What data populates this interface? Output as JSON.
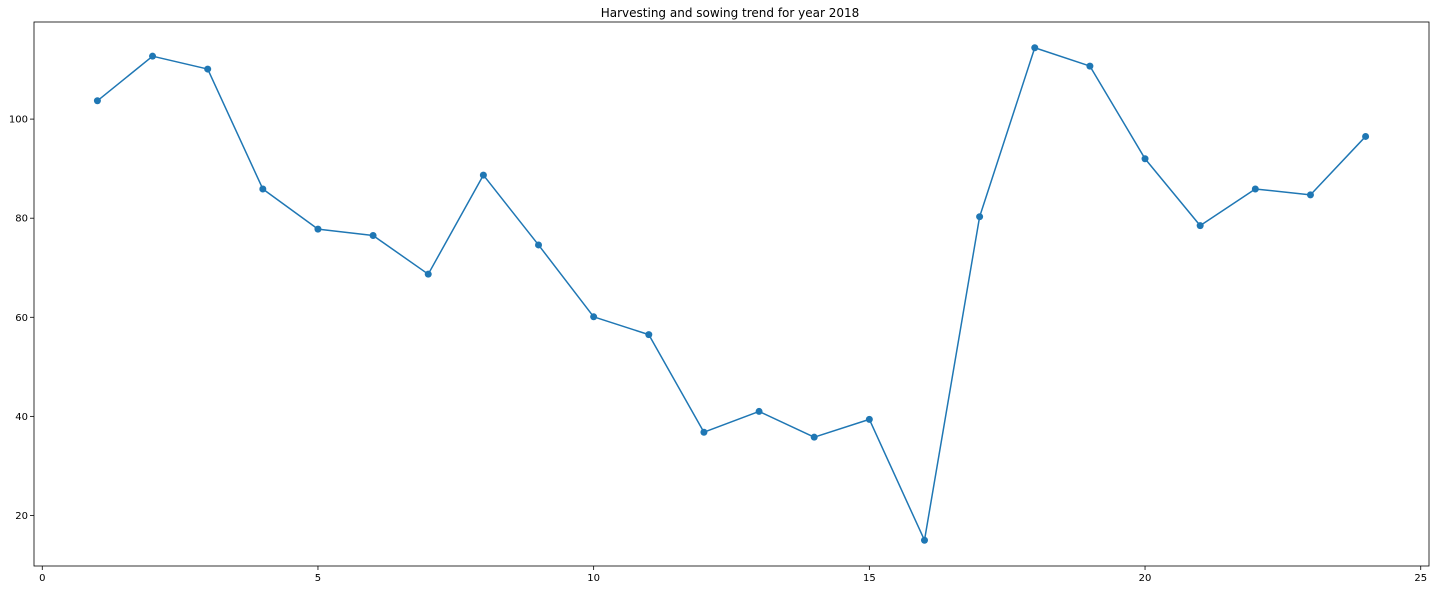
{
  "chart_data": {
    "type": "line",
    "title": "Harvesting and sowing trend for year 2018",
    "xlabel": "",
    "ylabel": "",
    "xlim": [
      -0.15,
      25.15
    ],
    "ylim": [
      9.8,
      119.6
    ],
    "x_ticks": [
      0,
      5,
      10,
      15,
      20,
      25
    ],
    "y_ticks": [
      20,
      40,
      60,
      80,
      100
    ],
    "grid": false,
    "legend": "none",
    "series": [
      {
        "color": "#1f77b4",
        "marker": "circle",
        "x": [
          1,
          2,
          3,
          4,
          5,
          6,
          7,
          8,
          9,
          10,
          11,
          12,
          13,
          14,
          15,
          16,
          17,
          18,
          19,
          20,
          21,
          22,
          23,
          24
        ],
        "y": [
          103.7,
          112.7,
          110.1,
          85.9,
          77.8,
          76.5,
          68.7,
          88.7,
          74.6,
          60.1,
          56.5,
          36.8,
          41.0,
          35.8,
          39.4,
          15.0,
          80.3,
          114.4,
          110.7,
          92.0,
          78.5,
          85.9,
          84.7,
          96.5
        ]
      }
    ]
  }
}
